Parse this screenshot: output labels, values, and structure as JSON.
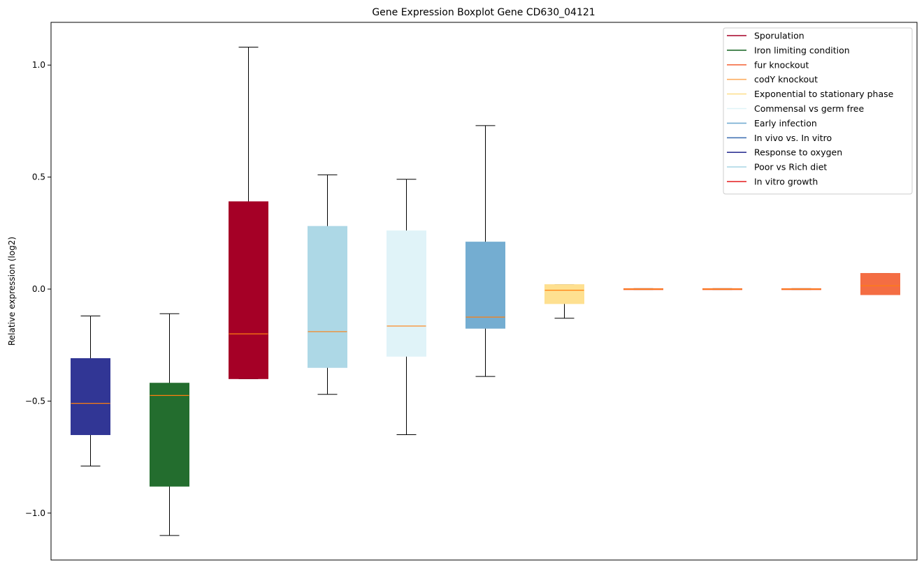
{
  "chart_data": {
    "type": "boxplot",
    "title": "Gene Expression Boxplot Gene CD630_04121",
    "xlabel": "",
    "ylabel": "Relative expression (log2)",
    "ylim": [
      -1.2,
      1.2
    ],
    "yticks": [
      1.0,
      0.5,
      0.0,
      -0.5,
      -1.0
    ],
    "ytick_labels": [
      "1.0",
      "0.5",
      "0.0",
      "−0.5",
      "−1.0"
    ],
    "xticks_visible": false,
    "grid": false,
    "legend_position": "top-right",
    "median_color": "#ff7f0e",
    "legend": [
      {
        "label": "Sporulation",
        "color": "#a50026"
      },
      {
        "label": "Iron limiting condition",
        "color": "#236d2e"
      },
      {
        "label": "fur knockout",
        "color": "#f46d43"
      },
      {
        "label": "codY knockout",
        "color": "#fdae61"
      },
      {
        "label": "Exponential to stationary phase",
        "color": "#fee090"
      },
      {
        "label": "Commensal vs germ free",
        "color": "#e0f3f8"
      },
      {
        "label": "Early infection",
        "color": "#74add1"
      },
      {
        "label": "In vivo vs. In vitro",
        "color": "#4575b4"
      },
      {
        "label": "Response to oxygen",
        "color": "#313695"
      },
      {
        "label": "Poor vs Rich diet",
        "color": "#add8e6"
      },
      {
        "label": "In vitro growth",
        "color": "#e41a1c"
      }
    ],
    "boxes": [
      {
        "color": "#313695",
        "whisker_low": -0.79,
        "q1": -0.65,
        "median": -0.51,
        "q3": -0.31,
        "whisker_high": -0.12
      },
      {
        "color": "#236d2e",
        "whisker_low": -1.1,
        "q1": -0.88,
        "median": -0.475,
        "q3": -0.42,
        "whisker_high": -0.11
      },
      {
        "color": "#a50026",
        "whisker_low": -0.4,
        "q1": -0.4,
        "median": -0.2,
        "q3": 0.39,
        "whisker_high": 1.08
      },
      {
        "color": "#add8e6",
        "whisker_low": -0.47,
        "q1": -0.35,
        "median": -0.19,
        "q3": 0.28,
        "whisker_high": 0.51
      },
      {
        "color": "#e0f3f8",
        "whisker_low": -0.65,
        "q1": -0.3,
        "median": -0.165,
        "q3": 0.26,
        "whisker_high": 0.49
      },
      {
        "color": "#74add1",
        "whisker_low": -0.39,
        "q1": -0.175,
        "median": -0.125,
        "q3": 0.21,
        "whisker_high": 0.73
      },
      {
        "color": "#fee090",
        "whisker_low": -0.13,
        "q1": -0.065,
        "median": -0.005,
        "q3": 0.02,
        "whisker_high": 0.02
      },
      {
        "color": "#f46d43",
        "whisker_low": -0.002,
        "q1": -0.002,
        "median": 0.0,
        "q3": 0.002,
        "whisker_high": 0.002
      },
      {
        "color": "#f46d43",
        "whisker_low": -0.002,
        "q1": -0.002,
        "median": 0.0,
        "q3": 0.002,
        "whisker_high": 0.002
      },
      {
        "color": "#f46d43",
        "whisker_low": -0.002,
        "q1": -0.002,
        "median": 0.0,
        "q3": 0.002,
        "whisker_high": 0.002
      },
      {
        "color": "#f46d43",
        "whisker_low": -0.025,
        "q1": -0.025,
        "median": 0.015,
        "q3": 0.07,
        "whisker_high": 0.07
      }
    ]
  }
}
